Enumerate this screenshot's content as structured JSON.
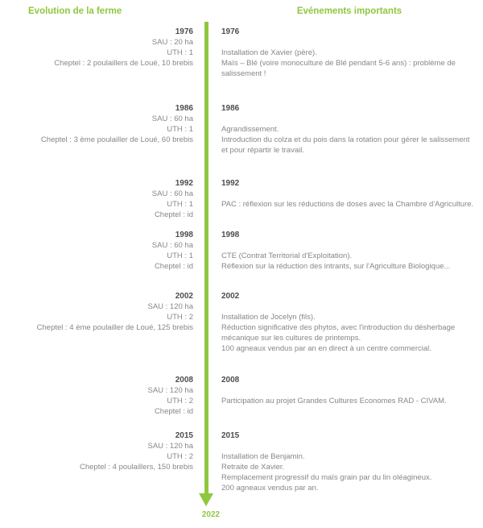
{
  "colors": {
    "accent": "#8FC73E",
    "year_text": "#4D4D4D",
    "body_text": "#878787"
  },
  "headers": {
    "left": "Evolution de la ferme",
    "right": "Evénements importants"
  },
  "timeline_end_year": "2022",
  "entries": [
    {
      "year": "1976",
      "farm": {
        "sau": "SAU : 20 ha",
        "uth": "UTH : 1",
        "cheptel": "Cheptel : 2 poulaillers de Loué, 10 brebis"
      },
      "events": [
        "Installation de Xavier (père).",
        "Maïs – Blé (voire monoculture de Blé pendant 5-6 ans) : problème de salissement !"
      ]
    },
    {
      "year": "1986",
      "farm": {
        "sau": "SAU : 60 ha",
        "uth": "UTH : 1",
        "cheptel": "Cheptel : 3 ème poulailler de Loué, 60 brebis"
      },
      "events": [
        "Agrandissement.",
        "Introduction du colza et du pois dans la rotation pour gérer le salissement et pour répartir le travail."
      ]
    },
    {
      "year": "1992",
      "farm": {
        "sau": "SAU : 60 ha",
        "uth": "UTH : 1",
        "cheptel": "Cheptel : id"
      },
      "events": [
        "PAC : réflexion sur les réductions de doses avec la Chambre d'Agriculture."
      ]
    },
    {
      "year": "1998",
      "farm": {
        "sau": "SAU : 60 ha",
        "uth": "UTH : 1",
        "cheptel": "Cheptel : id"
      },
      "events": [
        "CTE (Contrat Territorial d'Exploitation).",
        "Réflexion sur la réduction des intrants, sur l'Agriculture Biologique..."
      ]
    },
    {
      "year": "2002",
      "farm": {
        "sau": "SAU : 120 ha",
        "uth": "UTH : 2",
        "cheptel": "Cheptel : 4 ème poulailler de Loué, 125 brebis"
      },
      "events": [
        "Installation de Jocelyn (fils).",
        "Réduction significative des phytos, avec l'introduction du désherbage mécanique sur les cultures de printemps.",
        "100 agneaux vendus par an en direct à un centre commercial."
      ]
    },
    {
      "year": "2008",
      "farm": {
        "sau": "SAU : 120 ha",
        "uth": "UTH : 2",
        "cheptel": "Cheptel : id"
      },
      "events": [
        "Participation au projet Grandes Cultures Economes RAD - CIVAM."
      ]
    },
    {
      "year": "2015",
      "farm": {
        "sau": "SAU : 120 ha",
        "uth": "UTH : 2",
        "cheptel": "Cheptel : 4 poulaillers, 150 brebis"
      },
      "events": [
        "Installation de Benjamin.",
        "Retraite de Xavier.",
        "Remplacement progressif du maïs grain par du lin oléagineux.",
        "200 agneaux vendus par an."
      ]
    }
  ]
}
